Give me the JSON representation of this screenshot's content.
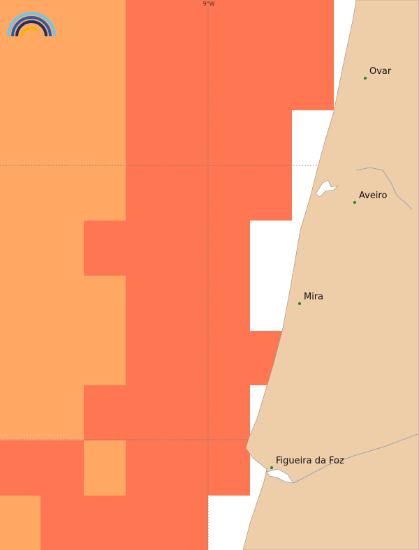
{
  "map": {
    "graticule_label": "9°W",
    "places": [
      {
        "name": "Ovar"
      },
      {
        "name": "Aveiro"
      },
      {
        "name": "Mira"
      },
      {
        "name": "Figueira da Foz"
      }
    ]
  }
}
